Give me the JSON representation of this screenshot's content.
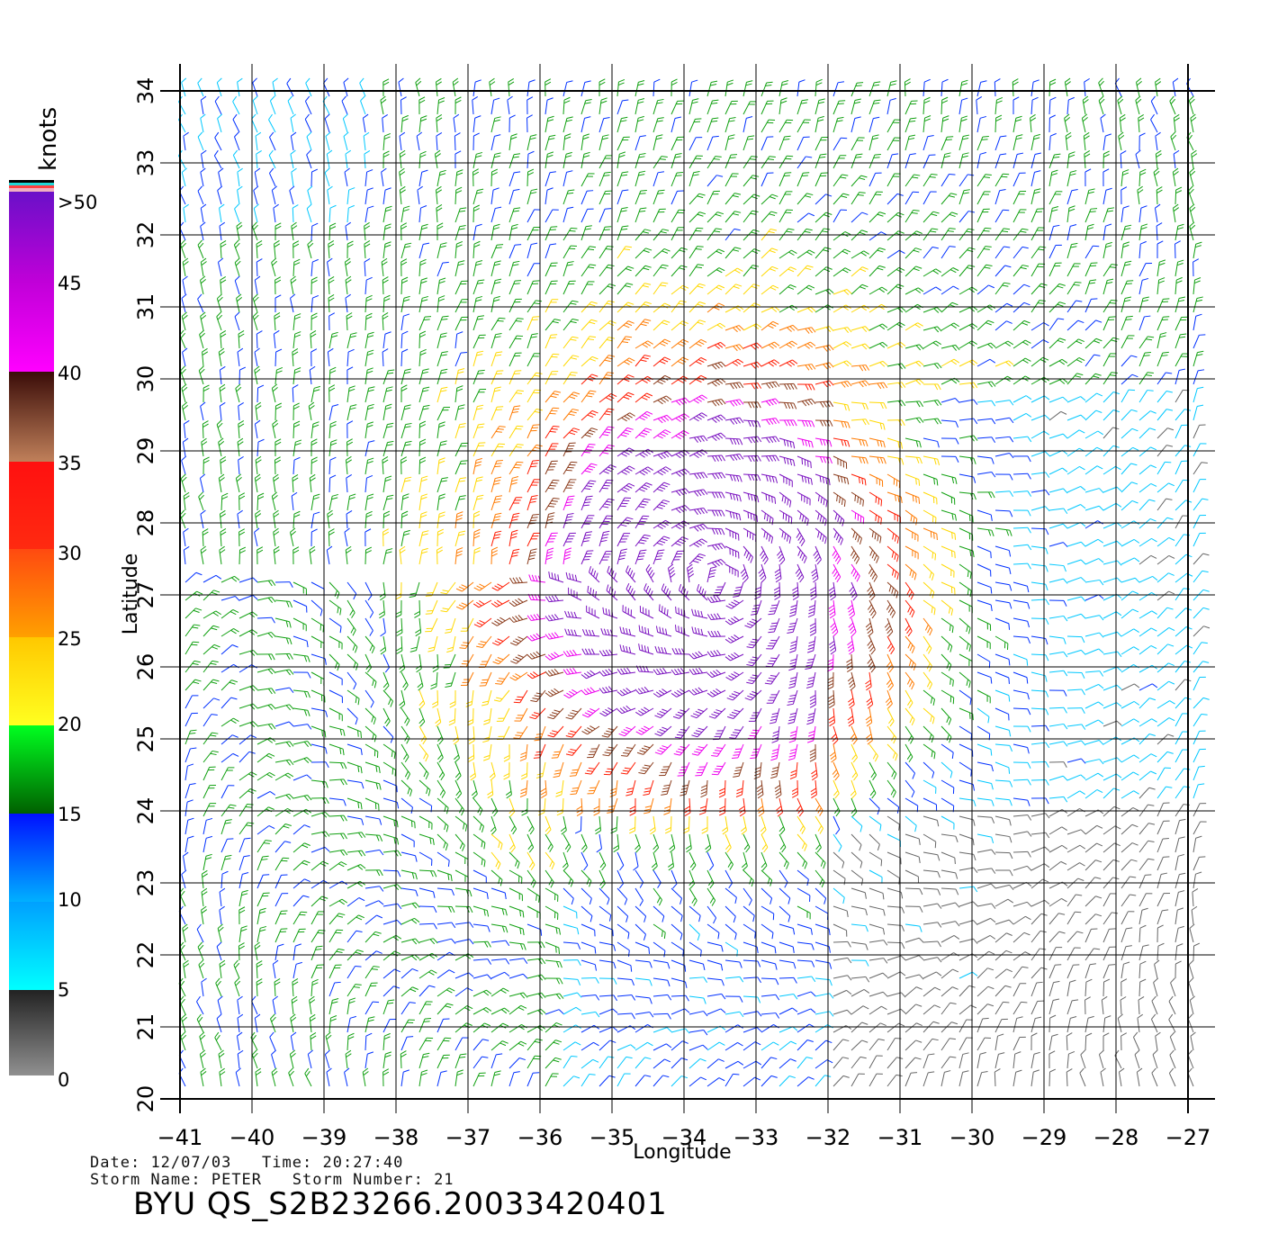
{
  "legend": {
    "title": "knots",
    "labels": [
      ">50",
      "45",
      "40",
      "35",
      "30",
      "25",
      "20",
      "15",
      "10",
      "5",
      "0"
    ]
  },
  "axes": {
    "xlabel": "Longitude",
    "ylabel": "Latitude",
    "lon_range": [
      -41,
      -27
    ],
    "lat_range": [
      20,
      34
    ],
    "x_tick_labels": [
      "−41",
      "−40",
      "−39",
      "−38",
      "−37",
      "−36",
      "−35",
      "−34",
      "−33",
      "−32",
      "−31",
      "−30",
      "−29",
      "−28",
      "−27"
    ],
    "y_tick_labels": [
      "20",
      "21",
      "22",
      "23",
      "24",
      "25",
      "26",
      "27",
      "28",
      "29",
      "30",
      "31",
      "32",
      "33",
      "34"
    ],
    "grid": true
  },
  "colors": {
    "calm_0_5": "#666666",
    "light_5_10": "#00c8ff",
    "blue_10_15": "#0030ff",
    "green_15_20": "#10a010",
    "yellow_20_25": "#ffd800",
    "orange_25_30": "#ff7a00",
    "red_30_35": "#ff1a00",
    "brown_35_40": "#8a3a1a",
    "magenta_40_45": "#ee00ee",
    "purple_45_50": "#7a10c0"
  },
  "storm_center": {
    "lon": -33.5,
    "lat": 27.2
  },
  "info": {
    "date_label": "Date:",
    "date_value": "12/07/03",
    "time_label": "Time:",
    "time_value": "20:27:40",
    "storm_name_label": "Storm Name:",
    "storm_name_value": "PETER",
    "storm_number_label": "Storm Number:",
    "storm_number_value": "21",
    "filename": "BYU QS_S2B23266.20033420401"
  }
}
